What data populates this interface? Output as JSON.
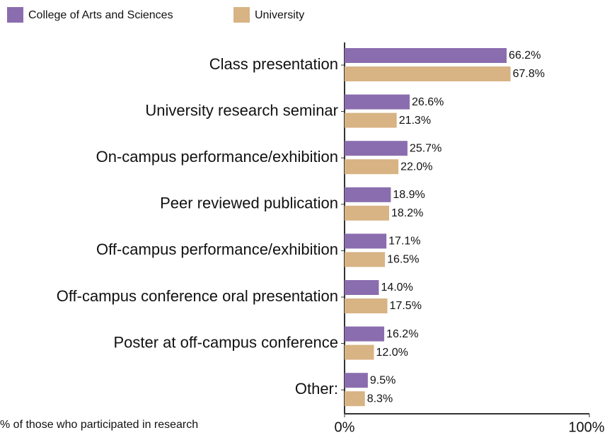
{
  "chart_data": {
    "type": "hbar",
    "x_label": "% of those who participated in research",
    "categories": [
      "Class presentation",
      "University research seminar",
      "On-campus performance/exhibition",
      "Peer reviewed publication",
      "Off-campus performance/exhibition",
      "Off-campus conference oral presentation",
      "Poster at off-campus conference",
      "Other:"
    ],
    "series": [
      {
        "name": "College of Arts and Sciences",
        "color": "#8a6dae",
        "values": [
          66.2,
          26.6,
          25.7,
          18.9,
          17.1,
          14.0,
          16.2,
          9.5
        ],
        "value_labels": [
          "66.2%",
          "26.6%",
          "25.7%",
          "18.9%",
          "17.1%",
          "14.0%",
          "16.2%",
          "9.5%"
        ]
      },
      {
        "name": "University",
        "color": "#d8b384",
        "values": [
          67.8,
          21.3,
          22.0,
          18.2,
          16.5,
          17.5,
          12.0,
          8.3
        ],
        "value_labels": [
          "67.8%",
          "21.3%",
          "22.0%",
          "18.2%",
          "16.5%",
          "17.5%",
          "12.0%",
          "8.3%"
        ]
      }
    ],
    "xlim": [
      0,
      100
    ],
    "xticks": [
      {
        "value": 0,
        "label": "0%"
      },
      {
        "value": 100,
        "label": "100%"
      }
    ],
    "legend": "top-left"
  }
}
